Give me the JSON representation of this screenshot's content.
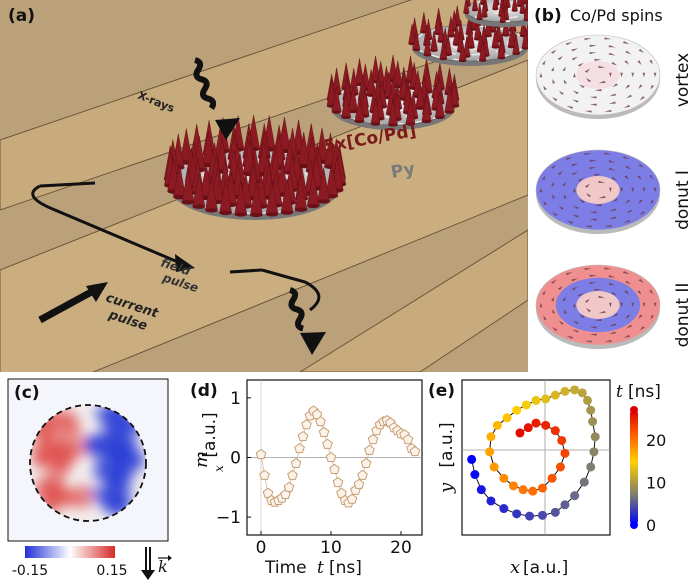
{
  "panel_a": {
    "label": "(a)",
    "xrays": "X-rays",
    "material_top": "5x[Co/Pd]",
    "material_bottom": "Py",
    "field_pulse": [
      "field",
      "pulse"
    ],
    "current_pulse": [
      "current",
      "pulse"
    ],
    "colors": {
      "strip": "#c8ab7d",
      "background": "#bba17a",
      "arrow": "#111111",
      "cone": "#8c1a22"
    }
  },
  "panel_b": {
    "label": "(b)",
    "title": "Co/Pd spins",
    "states": [
      "vortex",
      "donut I",
      "donut II"
    ]
  },
  "panel_c": {
    "label": "(c)",
    "colorbar_min": "-0.15",
    "colorbar_max": "0.15",
    "kvec": "k",
    "colors": {
      "neg": "#2b3fd6",
      "pos": "#d63a3a"
    }
  },
  "panel_d": {
    "label": "(d)",
    "ylabel": "m",
    "ylabel_sub": "x",
    "ylabel_unit": "[a.u.]",
    "xlabel_a": "Time",
    "xlabel_t": "t",
    "xlabel_unit": "[ns]",
    "yticks": [
      "1",
      "0",
      "−1"
    ],
    "xticks": [
      "0",
      "10",
      "20"
    ]
  },
  "panel_e": {
    "label": "(e)",
    "xlabel_var": "x",
    "xlabel_unit": "[a.u.]",
    "ylabel_var": "y",
    "ylabel_unit": "[a.u.]",
    "cbar_var": "t",
    "cbar_unit": "[ns]",
    "cbar_ticks": [
      "20",
      "10",
      "0"
    ]
  },
  "chart_data": [
    {
      "type": "scatter",
      "panel": "d",
      "xlabel": "Time t [ns]",
      "ylabel": "m_x [a.u.]",
      "xlim": [
        -2,
        23
      ],
      "ylim": [
        -1.3,
        1.3
      ],
      "xticks": [
        0,
        10,
        20
      ],
      "yticks": [
        -1,
        0,
        1
      ],
      "grid": "zero-lines",
      "x": [
        0,
        0.5,
        1,
        1.5,
        2,
        2.5,
        3,
        3.5,
        4,
        4.5,
        5,
        5.5,
        6,
        6.5,
        7,
        7.5,
        8,
        8.5,
        9,
        9.5,
        10,
        10.5,
        11,
        11.5,
        12,
        12.5,
        13,
        13.5,
        14,
        14.5,
        15,
        15.5,
        16,
        16.5,
        17,
        17.5,
        18,
        18.5,
        19,
        19.5,
        20,
        20.5,
        21,
        21.5,
        22
      ],
      "y": [
        0.05,
        -0.3,
        -0.6,
        -0.72,
        -0.75,
        -0.72,
        -0.68,
        -0.62,
        -0.5,
        -0.3,
        -0.1,
        0.15,
        0.35,
        0.55,
        0.7,
        0.78,
        0.72,
        0.6,
        0.42,
        0.22,
        0.0,
        -0.2,
        -0.42,
        -0.6,
        -0.72,
        -0.76,
        -0.7,
        -0.55,
        -0.45,
        -0.3,
        -0.1,
        0.12,
        0.3,
        0.45,
        0.55,
        0.6,
        0.62,
        0.58,
        0.5,
        0.45,
        0.4,
        0.38,
        0.3,
        0.15,
        0.1
      ]
    },
    {
      "type": "scatter",
      "panel": "e",
      "xlabel": "x [a.u.]",
      "ylabel": "y [a.u.]",
      "color_scale": {
        "var": "t [ns]",
        "range": [
          0,
          27
        ],
        "ticks": [
          0,
          10,
          20
        ],
        "colormap": [
          "#0000ff",
          "#777777",
          "#ffd000",
          "#ff6000",
          "#dd0000"
        ]
      },
      "x": [
        -1.0,
        -0.95,
        -0.85,
        -0.7,
        -0.5,
        -0.3,
        -0.1,
        0.1,
        0.3,
        0.45,
        0.6,
        0.75,
        0.85,
        0.9,
        0.92,
        0.88,
        0.85,
        0.8,
        0.72,
        0.6,
        0.45,
        0.3,
        0.15,
        0.0,
        -0.15,
        -0.3,
        -0.45,
        -0.6,
        -0.7,
        -0.72,
        -0.65,
        -0.5,
        -0.35,
        -0.2,
        -0.05,
        0.1,
        0.25,
        0.38,
        0.45,
        0.4,
        0.3,
        0.15,
        0.0,
        -0.12,
        -0.25
      ],
      "y": [
        0.0,
        -0.2,
        -0.4,
        -0.55,
        -0.65,
        -0.72,
        -0.75,
        -0.74,
        -0.7,
        -0.6,
        -0.48,
        -0.3,
        -0.1,
        0.1,
        0.3,
        0.5,
        0.65,
        0.78,
        0.88,
        0.92,
        0.9,
        0.85,
        0.8,
        0.78,
        0.72,
        0.65,
        0.55,
        0.45,
        0.3,
        0.1,
        -0.1,
        -0.25,
        -0.35,
        -0.4,
        -0.42,
        -0.38,
        -0.25,
        -0.1,
        0.08,
        0.25,
        0.38,
        0.45,
        0.48,
        0.42,
        0.35
      ],
      "t": [
        0,
        0.6,
        1.2,
        1.8,
        2.4,
        3,
        3.6,
        4.2,
        4.8,
        5.4,
        6,
        6.6,
        7.2,
        7.8,
        8.4,
        9,
        9.6,
        10.2,
        10.8,
        11.4,
        12,
        12.6,
        13.2,
        13.8,
        14.4,
        15,
        15.6,
        16.2,
        16.8,
        17.4,
        18,
        18.6,
        19.2,
        19.8,
        20.4,
        21,
        21.6,
        22.2,
        22.8,
        23.4,
        24,
        24.6,
        25.2,
        25.8,
        26.4
      ]
    }
  ]
}
